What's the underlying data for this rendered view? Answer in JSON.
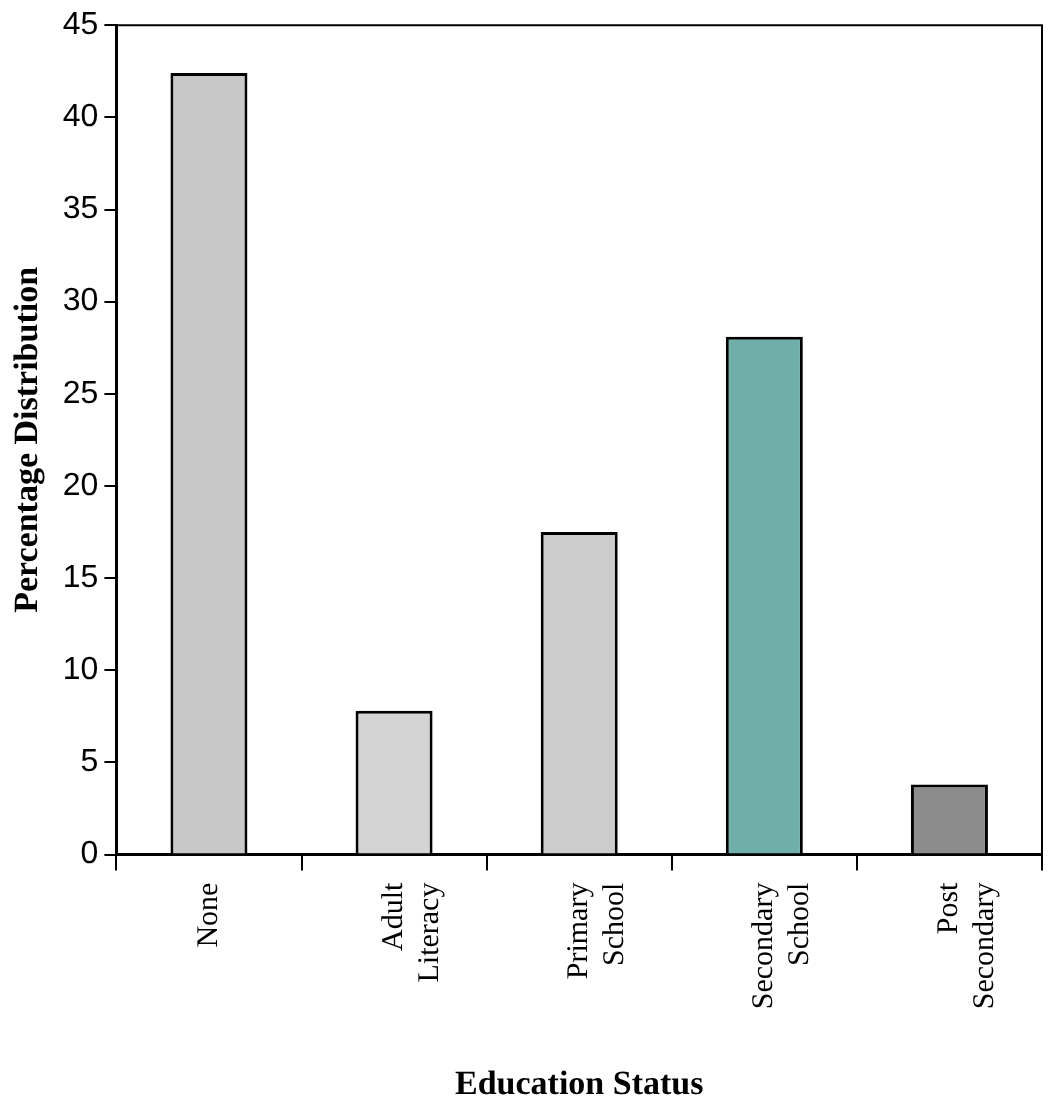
{
  "chart_data": {
    "type": "bar",
    "xlabel": "Education Status",
    "ylabel": "Percentage Distribution",
    "categories": [
      "None",
      "Adult Literacy",
      "Primary School",
      "Secondary School",
      "Post Secondary"
    ],
    "values": [
      42.4,
      7.8,
      17.5,
      28.1,
      3.8
    ],
    "colors": [
      "#c8c8c8",
      "#d4d4d4",
      "#cccccc",
      "#70aeaa",
      "#8c8c8c"
    ],
    "ylim": [
      0,
      45
    ],
    "yticks": [
      0,
      5,
      10,
      15,
      20,
      25,
      30,
      35,
      40,
      45
    ],
    "grid": false,
    "legend": false
  }
}
